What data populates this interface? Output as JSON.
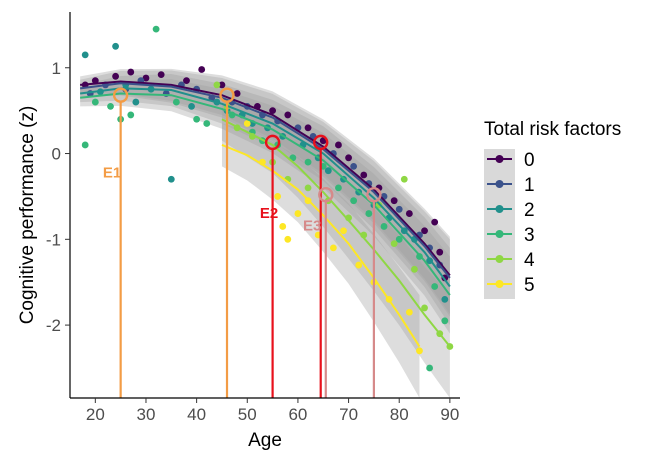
{
  "chart_data": {
    "type": "scatter",
    "xlabel": "Age",
    "ylabel": "Cognitive performance (z)",
    "xlim": [
      15,
      92
    ],
    "ylim": [
      -2.85,
      1.65
    ],
    "x_ticks": [
      20,
      30,
      40,
      50,
      60,
      70,
      80,
      90
    ],
    "y_ticks": [
      1,
      0,
      -1,
      -2
    ],
    "grid": false,
    "legend": {
      "title": "Total risk factors",
      "placement": "right",
      "entries": [
        "0",
        "1",
        "2",
        "3",
        "4",
        "5"
      ]
    },
    "series": [
      {
        "name": "0",
        "color": "#440154",
        "trend": [
          [
            17,
            0.8
          ],
          [
            25,
            0.84
          ],
          [
            35,
            0.8
          ],
          [
            45,
            0.68
          ],
          [
            55,
            0.45
          ],
          [
            65,
            0.08
          ],
          [
            75,
            -0.42
          ],
          [
            85,
            -1.05
          ],
          [
            90,
            -1.42
          ]
        ],
        "points": [
          [
            18,
            0.8
          ],
          [
            20,
            0.85
          ],
          [
            24,
            0.9
          ],
          [
            27,
            0.95
          ],
          [
            30,
            0.88
          ],
          [
            33,
            0.92
          ],
          [
            38,
            0.85
          ],
          [
            41,
            0.98
          ],
          [
            45,
            0.8
          ],
          [
            48,
            0.7
          ],
          [
            52,
            0.55
          ],
          [
            55,
            0.5
          ],
          [
            58,
            0.45
          ],
          [
            62,
            0.3
          ],
          [
            65,
            0.15
          ],
          [
            68,
            0.1
          ],
          [
            70,
            -0.05
          ],
          [
            73,
            -0.25
          ],
          [
            76,
            -0.4
          ],
          [
            79,
            -0.55
          ],
          [
            82,
            -0.7
          ],
          [
            85,
            -0.9
          ],
          [
            87,
            -0.8
          ],
          [
            88,
            -1.15
          ],
          [
            89,
            -1.45
          ]
        ]
      },
      {
        "name": "1",
        "color": "#3b528b",
        "trend": [
          [
            17,
            0.76
          ],
          [
            25,
            0.82
          ],
          [
            35,
            0.78
          ],
          [
            45,
            0.65
          ],
          [
            55,
            0.42
          ],
          [
            65,
            0.05
          ],
          [
            75,
            -0.45
          ],
          [
            85,
            -1.08
          ],
          [
            90,
            -1.45
          ]
        ],
        "points": [
          [
            19,
            0.7
          ],
          [
            22,
            0.8
          ],
          [
            26,
            0.75
          ],
          [
            29,
            0.85
          ],
          [
            34,
            0.7
          ],
          [
            37,
            0.8
          ],
          [
            40,
            0.75
          ],
          [
            43,
            0.65
          ],
          [
            47,
            0.6
          ],
          [
            50,
            0.55
          ],
          [
            53,
            0.45
          ],
          [
            56,
            0.38
          ],
          [
            60,
            0.3
          ],
          [
            63,
            0.2
          ],
          [
            67,
            0.0
          ],
          [
            71,
            -0.15
          ],
          [
            74,
            -0.35
          ],
          [
            77,
            -0.5
          ],
          [
            80,
            -0.65
          ],
          [
            84,
            -0.95
          ],
          [
            86,
            -1.1
          ],
          [
            88,
            -1.3
          ]
        ]
      },
      {
        "name": "2",
        "color": "#21908c",
        "trend": [
          [
            17,
            0.7
          ],
          [
            25,
            0.76
          ],
          [
            35,
            0.74
          ],
          [
            45,
            0.58
          ],
          [
            55,
            0.35
          ],
          [
            65,
            0.0
          ],
          [
            75,
            -0.52
          ],
          [
            85,
            -1.15
          ],
          [
            90,
            -1.55
          ]
        ],
        "points": [
          [
            18,
            1.15
          ],
          [
            21,
            0.72
          ],
          [
            24,
            1.25
          ],
          [
            26,
            0.8
          ],
          [
            28,
            0.6
          ],
          [
            31,
            0.75
          ],
          [
            35,
            -0.3
          ],
          [
            39,
            0.55
          ],
          [
            44,
            0.6
          ],
          [
            46,
            0.5
          ],
          [
            49,
            0.45
          ],
          [
            51,
            0.35
          ],
          [
            54,
            0.3
          ],
          [
            57,
            0.2
          ],
          [
            61,
            0.1
          ],
          [
            64,
            -0.05
          ],
          [
            66,
            -0.2
          ],
          [
            69,
            -0.3
          ],
          [
            72,
            -0.45
          ],
          [
            75,
            -0.6
          ],
          [
            78,
            -0.75
          ],
          [
            81,
            -0.9
          ],
          [
            83,
            -1.0
          ],
          [
            86,
            -1.25
          ],
          [
            89,
            -1.7
          ]
        ]
      },
      {
        "name": "3",
        "color": "#35b779",
        "trend": [
          [
            17,
            0.65
          ],
          [
            25,
            0.7
          ],
          [
            35,
            0.68
          ],
          [
            45,
            0.52
          ],
          [
            55,
            0.28
          ],
          [
            65,
            -0.08
          ],
          [
            75,
            -0.6
          ],
          [
            85,
            -1.25
          ],
          [
            90,
            -1.65
          ]
        ],
        "points": [
          [
            18,
            0.1
          ],
          [
            20,
            0.6
          ],
          [
            23,
            0.55
          ],
          [
            25,
            0.4
          ],
          [
            27,
            0.45
          ],
          [
            32,
            1.45
          ],
          [
            36,
            0.6
          ],
          [
            40,
            0.4
          ],
          [
            42,
            0.35
          ],
          [
            47,
            0.45
          ],
          [
            51,
            0.25
          ],
          [
            53,
            0.15
          ],
          [
            56,
            0.1
          ],
          [
            59,
            -0.05
          ],
          [
            62,
            -0.1
          ],
          [
            65,
            -0.15
          ],
          [
            68,
            -0.4
          ],
          [
            71,
            -0.55
          ],
          [
            74,
            -0.7
          ],
          [
            77,
            -0.85
          ],
          [
            80,
            -1.0
          ],
          [
            84,
            -1.2
          ],
          [
            86,
            -2.5
          ],
          [
            87,
            -1.55
          ],
          [
            89,
            -1.95
          ]
        ]
      },
      {
        "name": "4",
        "color": "#8fd744",
        "trend": [
          [
            45,
            0.4
          ],
          [
            50,
            0.25
          ],
          [
            55,
            0.1
          ],
          [
            60,
            -0.15
          ],
          [
            65,
            -0.45
          ],
          [
            70,
            -0.78
          ],
          [
            75,
            -1.12
          ],
          [
            80,
            -1.48
          ],
          [
            85,
            -1.88
          ],
          [
            90,
            -2.25
          ]
        ],
        "points": [
          [
            44,
            0.8
          ],
          [
            46,
            0.55
          ],
          [
            48,
            0.3
          ],
          [
            51,
            0.2
          ],
          [
            55,
            -0.1
          ],
          [
            58,
            -0.3
          ],
          [
            62,
            -0.4
          ],
          [
            66,
            -0.55
          ],
          [
            70,
            -0.75
          ],
          [
            73,
            -0.95
          ],
          [
            76,
            -0.6
          ],
          [
            79,
            -1.05
          ],
          [
            81,
            -0.3
          ],
          [
            83,
            -1.35
          ],
          [
            85,
            -1.8
          ],
          [
            88,
            -2.1
          ],
          [
            90,
            -2.25
          ]
        ]
      },
      {
        "name": "5",
        "color": "#fde725",
        "trend": [
          [
            45,
            0.1
          ],
          [
            50,
            -0.02
          ],
          [
            55,
            -0.2
          ],
          [
            60,
            -0.42
          ],
          [
            65,
            -0.72
          ],
          [
            70,
            -1.05
          ],
          [
            75,
            -1.45
          ],
          [
            80,
            -1.88
          ],
          [
            84,
            -2.25
          ]
        ],
        "points": [
          [
            50,
            0.35
          ],
          [
            53,
            -0.1
          ],
          [
            56,
            -0.5
          ],
          [
            57,
            -0.85
          ],
          [
            58,
            -1.0
          ],
          [
            60,
            -0.7
          ],
          [
            62,
            -0.55
          ],
          [
            64,
            -0.95
          ],
          [
            67,
            -1.1
          ],
          [
            69,
            -0.9
          ],
          [
            72,
            -1.3
          ],
          [
            75,
            -1.5
          ],
          [
            78,
            -1.7
          ],
          [
            82,
            -1.85
          ],
          [
            84,
            -2.3
          ]
        ]
      }
    ],
    "annotations": [
      {
        "x": 25,
        "y": 0.68,
        "color": "#f39c45",
        "label": "E1",
        "label_x": 21.5,
        "label_y": -0.28
      },
      {
        "x": 46,
        "y": 0.68,
        "color": "#f39c45",
        "label": "",
        "label_x": 0,
        "label_y": 0
      },
      {
        "x": 55,
        "y": 0.13,
        "color": "#e8111c",
        "label": "E2",
        "label_x": 52.5,
        "label_y": -0.75
      },
      {
        "x": 64.5,
        "y": 0.13,
        "color": "#e8111c",
        "label": "",
        "label_x": 0,
        "label_y": 0
      },
      {
        "x": 65.5,
        "y": -0.48,
        "color": "#d68a8a",
        "label": "E3",
        "label_x": 61,
        "label_y": -0.9
      },
      {
        "x": 75,
        "y": -0.48,
        "color": "#d68a8a",
        "label": "",
        "label_x": 0,
        "label_y": 0
      }
    ]
  }
}
